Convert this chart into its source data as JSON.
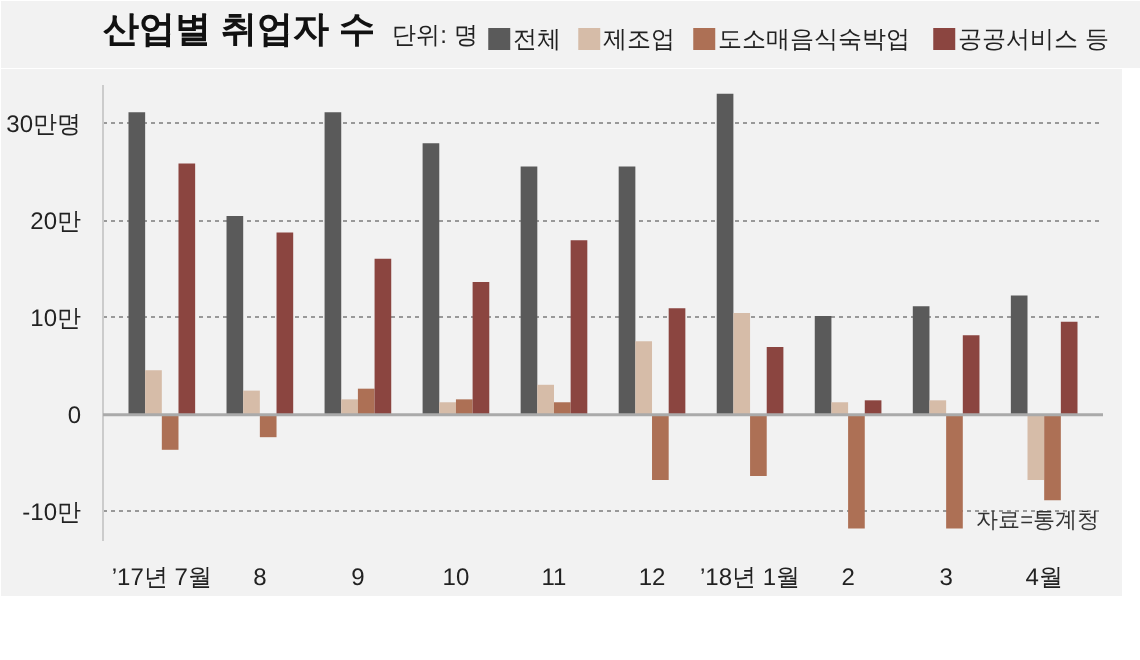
{
  "chart_data": {
    "type": "bar",
    "title": "산업별 취업자 수",
    "subtitle": "단위: 명",
    "categories": [
      "’17년 7월",
      "8",
      "9",
      "10",
      "11",
      "12",
      "’18년 1월",
      "2",
      "3",
      "4월"
    ],
    "series": [
      {
        "name": "전체",
        "color": "#5a5a5a",
        "values": [
          31.2,
          20.5,
          31.2,
          28.0,
          25.6,
          25.6,
          33.1,
          10.2,
          11.2,
          12.3
        ]
      },
      {
        "name": "제조업",
        "color": "#d6bca8",
        "values": [
          4.6,
          2.5,
          1.6,
          1.3,
          3.1,
          7.6,
          10.5,
          1.3,
          1.5,
          -6.7
        ]
      },
      {
        "name": "도소매음식숙박업",
        "color": "#ad7055",
        "values": [
          -3.6,
          -2.3,
          2.7,
          1.6,
          1.3,
          -6.7,
          -6.3,
          -11.7,
          -11.7,
          -8.8
        ]
      },
      {
        "name": "공공서비스 등",
        "color": "#8b4540",
        "values": [
          25.9,
          18.8,
          16.1,
          13.7,
          18.0,
          11.0,
          7.0,
          1.5,
          8.2,
          9.6
        ]
      }
    ],
    "ylim": [
      -13,
      34
    ],
    "yticks": [
      {
        "value": -10,
        "label": "-10만"
      },
      0,
      {
        "value": 10,
        "label": "10만"
      },
      {
        "value": 20,
        "label": "20만"
      },
      {
        "value": 30,
        "label": "30만명"
      }
    ],
    "ref_lines": [
      {
        "axis": "y",
        "value": 0,
        "color": "#aaaaaa"
      }
    ],
    "grid": "y",
    "legend": "top right",
    "annotations": [
      "자료=통계청"
    ]
  }
}
